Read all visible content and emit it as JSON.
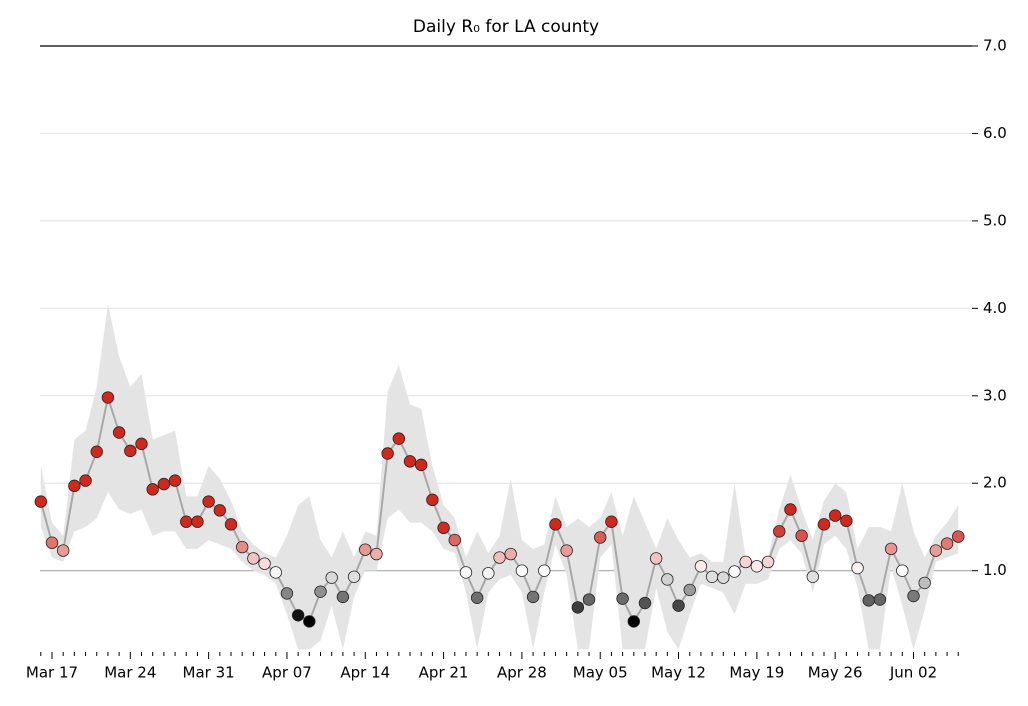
{
  "chart_data": {
    "type": "line",
    "title": "Daily R₀ for LA county",
    "categories": [
      null,
      "Mar 17",
      null,
      null,
      null,
      null,
      null,
      null,
      "Mar 24",
      null,
      null,
      null,
      null,
      null,
      null,
      "Mar 31",
      null,
      null,
      null,
      null,
      null,
      null,
      "Apr 07",
      null,
      null,
      null,
      null,
      null,
      null,
      "Apr 14",
      null,
      null,
      null,
      null,
      null,
      null,
      "Apr 21",
      null,
      null,
      null,
      null,
      null,
      null,
      "Apr 28",
      null,
      null,
      null,
      null,
      null,
      null,
      "May 05",
      null,
      null,
      null,
      null,
      null,
      null,
      "May 12",
      null,
      null,
      null,
      null,
      null,
      null,
      "May 19",
      null,
      null,
      null,
      null,
      null,
      null,
      "May 26",
      null,
      null,
      null,
      null,
      null,
      null,
      "Jun 02",
      null,
      null,
      null,
      null
    ],
    "values": [
      1.79,
      1.32,
      1.23,
      1.97,
      2.03,
      2.36,
      2.98,
      2.58,
      2.37,
      2.45,
      1.93,
      1.99,
      2.03,
      1.56,
      1.56,
      1.79,
      1.69,
      1.53,
      1.27,
      1.14,
      1.08,
      0.98,
      0.74,
      0.49,
      0.42,
      0.76,
      0.92,
      0.7,
      0.93,
      1.24,
      1.19,
      2.34,
      2.51,
      2.25,
      2.21,
      1.81,
      1.49,
      1.35,
      0.98,
      0.69,
      0.97,
      1.15,
      1.19,
      1.0,
      0.7,
      1.0,
      1.53,
      1.23,
      0.58,
      0.67,
      1.38,
      1.56,
      0.68,
      0.42,
      0.63,
      1.14,
      0.9,
      0.6,
      0.78,
      1.05,
      0.93,
      0.92,
      0.99,
      1.1,
      1.05,
      1.1,
      1.45,
      1.7,
      1.4,
      0.93,
      1.53,
      1.63,
      1.57,
      1.03,
      0.66,
      0.67,
      1.25,
      1.0,
      0.71,
      0.86,
      1.23,
      1.31,
      1.39
    ],
    "lower": [
      1.5,
      1.15,
      1.1,
      1.45,
      1.5,
      1.6,
      1.9,
      1.7,
      1.65,
      1.7,
      1.4,
      1.45,
      1.45,
      1.25,
      1.25,
      1.35,
      1.3,
      1.25,
      1.1,
      1.0,
      0.95,
      0.85,
      0.5,
      0.1,
      0.1,
      0.2,
      0.6,
      0.1,
      0.7,
      1.0,
      1.0,
      1.6,
      1.7,
      1.55,
      1.55,
      1.45,
      1.25,
      1.2,
      0.75,
      0.1,
      0.75,
      0.9,
      0.95,
      0.75,
      0.1,
      0.75,
      1.3,
      0.95,
      0.1,
      0.1,
      1.15,
      1.3,
      0.1,
      0.1,
      0.1,
      0.8,
      0.3,
      0.1,
      0.5,
      0.85,
      0.8,
      0.75,
      0.5,
      0.85,
      0.85,
      0.9,
      1.25,
      1.35,
      1.2,
      0.75,
      1.3,
      1.4,
      1.25,
      0.8,
      0.1,
      0.1,
      1.05,
      0.6,
      0.1,
      0.55,
      1.1,
      1.15,
      1.2
    ],
    "upper": [
      2.2,
      1.55,
      1.4,
      2.5,
      2.6,
      3.1,
      4.05,
      3.45,
      3.1,
      3.25,
      2.5,
      2.55,
      2.6,
      1.85,
      1.85,
      2.2,
      2.05,
      1.8,
      1.45,
      1.3,
      1.2,
      1.15,
      1.4,
      1.75,
      1.85,
      1.35,
      1.15,
      1.45,
      1.15,
      1.45,
      1.4,
      3.05,
      3.35,
      2.9,
      2.85,
      2.2,
      1.75,
      1.6,
      1.15,
      1.45,
      1.2,
      1.4,
      2.05,
      1.35,
      1.25,
      1.3,
      1.85,
      1.5,
      1.6,
      1.5,
      1.6,
      1.9,
      1.4,
      1.85,
      1.55,
      1.25,
      1.6,
      1.35,
      1.15,
      1.2,
      1.1,
      1.1,
      2.0,
      1.15,
      1.1,
      1.15,
      1.7,
      2.1,
      1.7,
      1.35,
      1.8,
      2.0,
      1.9,
      1.25,
      1.5,
      1.5,
      1.45,
      2.0,
      1.45,
      1.15,
      1.4,
      1.55,
      1.75
    ],
    "ylim": [
      0.07,
      7.0
    ],
    "yticks": [
      {
        "value": 1,
        "label": "1.0"
      },
      {
        "value": 2,
        "label": "2.0"
      },
      {
        "value": 3,
        "label": "3.0"
      },
      {
        "value": 4,
        "label": "4.0"
      },
      {
        "value": 5,
        "label": "5.0"
      },
      {
        "value": 6,
        "label": "6.0"
      },
      {
        "value": 7,
        "label": "7.0"
      }
    ],
    "reference_line": 1,
    "grid": true,
    "line_color": "#a8a8a8",
    "band_color": "#e4e4e4",
    "point_colors": {
      "low": "#000000",
      "mid": "#ffffff",
      "high": "#d0281d"
    }
  }
}
